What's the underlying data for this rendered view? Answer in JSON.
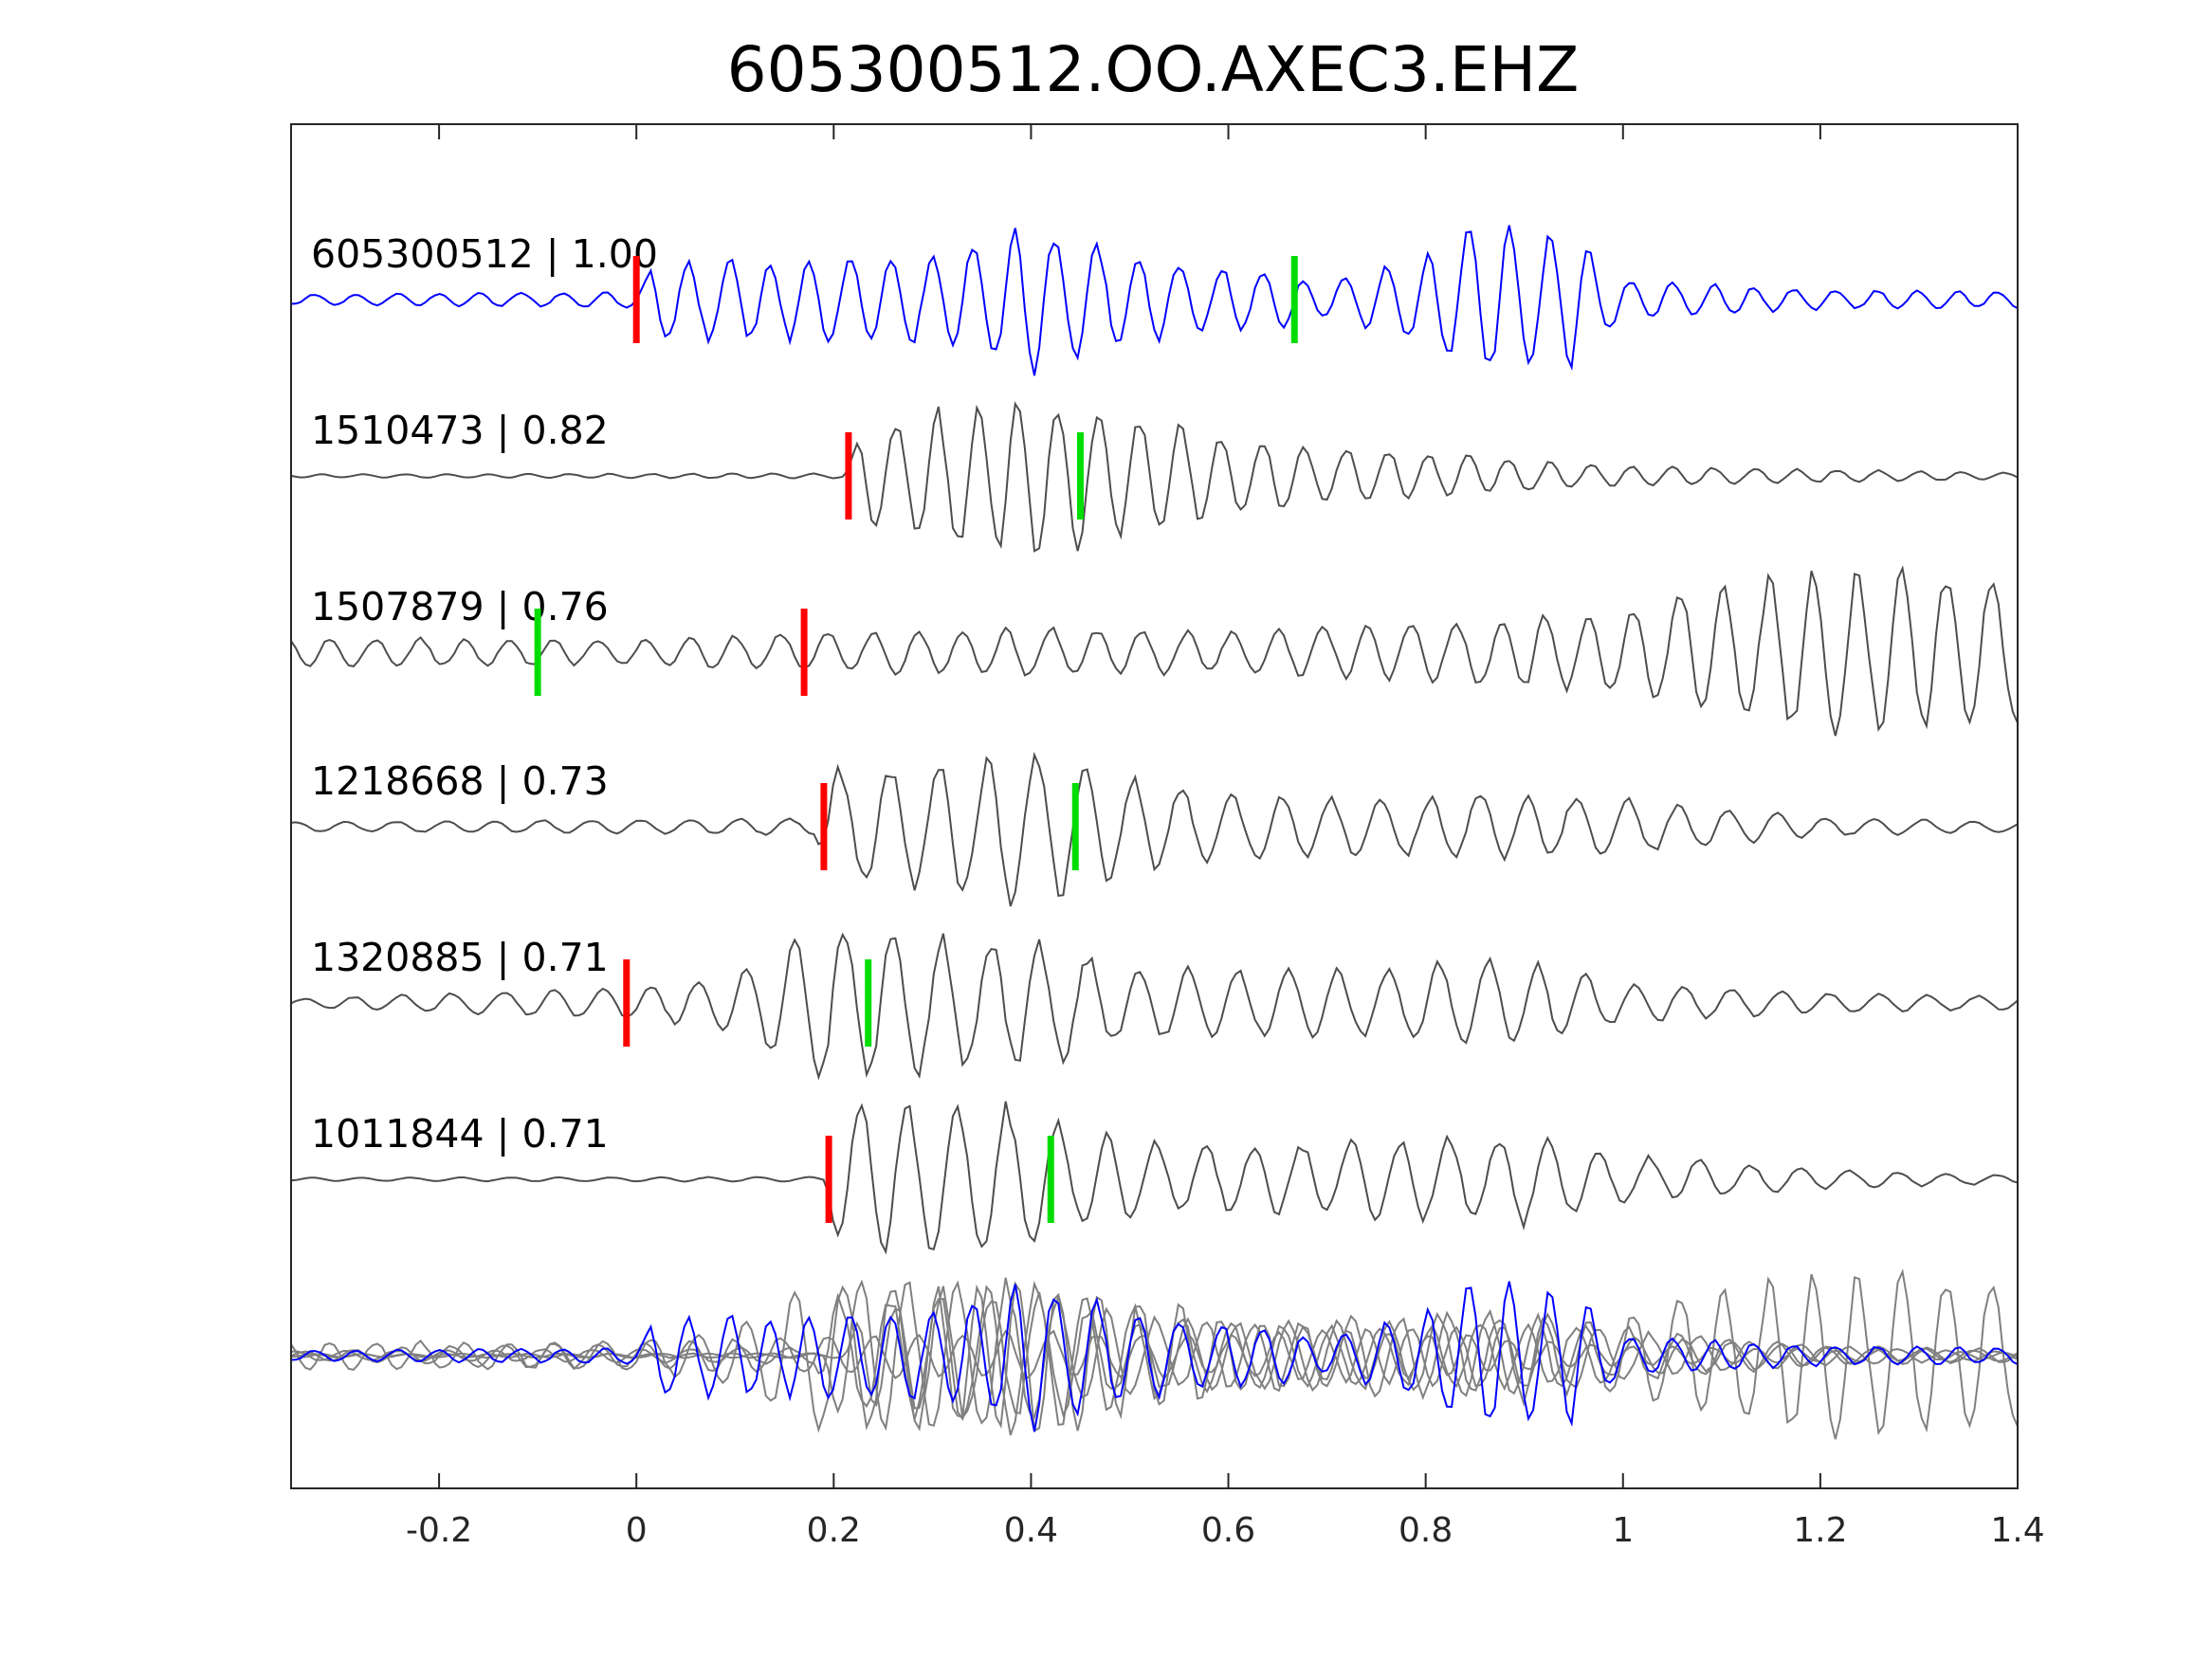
{
  "chart_data": {
    "type": "line",
    "title": "605300512.OO.AXEC3.EHZ",
    "xlabel": "",
    "ylabel": "",
    "xlim": [
      -0.35,
      1.4
    ],
    "xticks": [
      -0.2,
      0,
      0.2,
      0.4,
      0.6,
      0.8,
      1,
      1.2,
      1.4
    ],
    "xtick_labels": [
      "-0.2",
      "0",
      "0.2",
      "0.4",
      "0.6",
      "0.8",
      "1",
      "1.2",
      "1.4"
    ],
    "grid": false,
    "legend": "none",
    "colors": {
      "reference_trace": "#0000ff",
      "matched_trace": "#4d4d4d",
      "overlay_trace": "#808080",
      "p_pick": "#ff0000",
      "s_pick": "#00dd00",
      "axes": "#262626"
    },
    "series": [
      {
        "label": "605300512 | 1.00",
        "p_pick": 0.0,
        "s_pick": 0.667,
        "envelope": [
          [
            -0.35,
            0.06
          ],
          [
            0.0,
            0.1
          ],
          [
            0.02,
            0.5
          ],
          [
            0.15,
            0.5
          ],
          [
            0.3,
            0.55
          ],
          [
            0.4,
            0.9
          ],
          [
            0.55,
            0.45
          ],
          [
            0.65,
            0.35
          ],
          [
            0.7,
            0.2
          ],
          [
            0.8,
            0.55
          ],
          [
            0.85,
            0.95
          ],
          [
            0.95,
            0.8
          ],
          [
            1.0,
            0.25
          ],
          [
            1.1,
            0.18
          ],
          [
            1.2,
            0.12
          ],
          [
            1.4,
            0.1
          ]
        ],
        "freq": 24,
        "seed": 1
      },
      {
        "label": "1510473 | 0.82",
        "p_pick": 0.215,
        "s_pick": 0.45,
        "envelope": [
          [
            -0.35,
            0.02
          ],
          [
            0.21,
            0.03
          ],
          [
            0.23,
            0.6
          ],
          [
            0.3,
            0.8
          ],
          [
            0.4,
            1.0
          ],
          [
            0.5,
            0.75
          ],
          [
            0.6,
            0.5
          ],
          [
            0.7,
            0.35
          ],
          [
            0.85,
            0.25
          ],
          [
            1.0,
            0.12
          ],
          [
            1.2,
            0.08
          ],
          [
            1.4,
            0.04
          ]
        ],
        "freq": 24,
        "seed": 2
      },
      {
        "label": "1507879 | 0.76",
        "p_pick": 0.17,
        "s_pick": -0.1,
        "envelope": [
          [
            -0.35,
            0.18
          ],
          [
            0.0,
            0.16
          ],
          [
            0.2,
            0.25
          ],
          [
            0.4,
            0.3
          ],
          [
            0.6,
            0.25
          ],
          [
            0.8,
            0.35
          ],
          [
            1.0,
            0.55
          ],
          [
            1.1,
            0.85
          ],
          [
            1.2,
            1.0
          ],
          [
            1.3,
            1.0
          ],
          [
            1.4,
            0.95
          ]
        ],
        "freq": 22,
        "seed": 3
      },
      {
        "label": "1218668 | 0.73",
        "p_pick": 0.19,
        "s_pick": 0.445,
        "envelope": [
          [
            -0.35,
            0.06
          ],
          [
            0.18,
            0.1
          ],
          [
            0.2,
            0.7
          ],
          [
            0.3,
            0.75
          ],
          [
            0.4,
            1.0
          ],
          [
            0.5,
            0.6
          ],
          [
            0.6,
            0.4
          ],
          [
            0.75,
            0.35
          ],
          [
            0.9,
            0.4
          ],
          [
            1.0,
            0.35
          ],
          [
            1.2,
            0.12
          ],
          [
            1.4,
            0.06
          ]
        ],
        "freq": 20,
        "seed": 4
      },
      {
        "label": "1320885 | 0.71",
        "p_pick": -0.01,
        "s_pick": 0.235,
        "envelope": [
          [
            -0.35,
            0.05
          ],
          [
            0.0,
            0.2
          ],
          [
            0.1,
            0.35
          ],
          [
            0.19,
            1.0
          ],
          [
            0.3,
            0.85
          ],
          [
            0.4,
            0.8
          ],
          [
            0.5,
            0.45
          ],
          [
            0.7,
            0.4
          ],
          [
            0.9,
            0.55
          ],
          [
            1.0,
            0.25
          ],
          [
            1.2,
            0.12
          ],
          [
            1.4,
            0.08
          ]
        ],
        "freq": 20,
        "seed": 5
      },
      {
        "label": "1011844 | 0.71",
        "p_pick": 0.195,
        "s_pick": 0.42,
        "envelope": [
          [
            -0.35,
            0.02
          ],
          [
            0.19,
            0.03
          ],
          [
            0.21,
            1.0
          ],
          [
            0.3,
            0.9
          ],
          [
            0.4,
            0.9
          ],
          [
            0.45,
            0.6
          ],
          [
            0.55,
            0.4
          ],
          [
            0.7,
            0.45
          ],
          [
            0.9,
            0.55
          ],
          [
            1.0,
            0.3
          ],
          [
            1.2,
            0.12
          ],
          [
            1.4,
            0.05
          ]
        ],
        "freq": 20,
        "seed": 6
      }
    ]
  }
}
